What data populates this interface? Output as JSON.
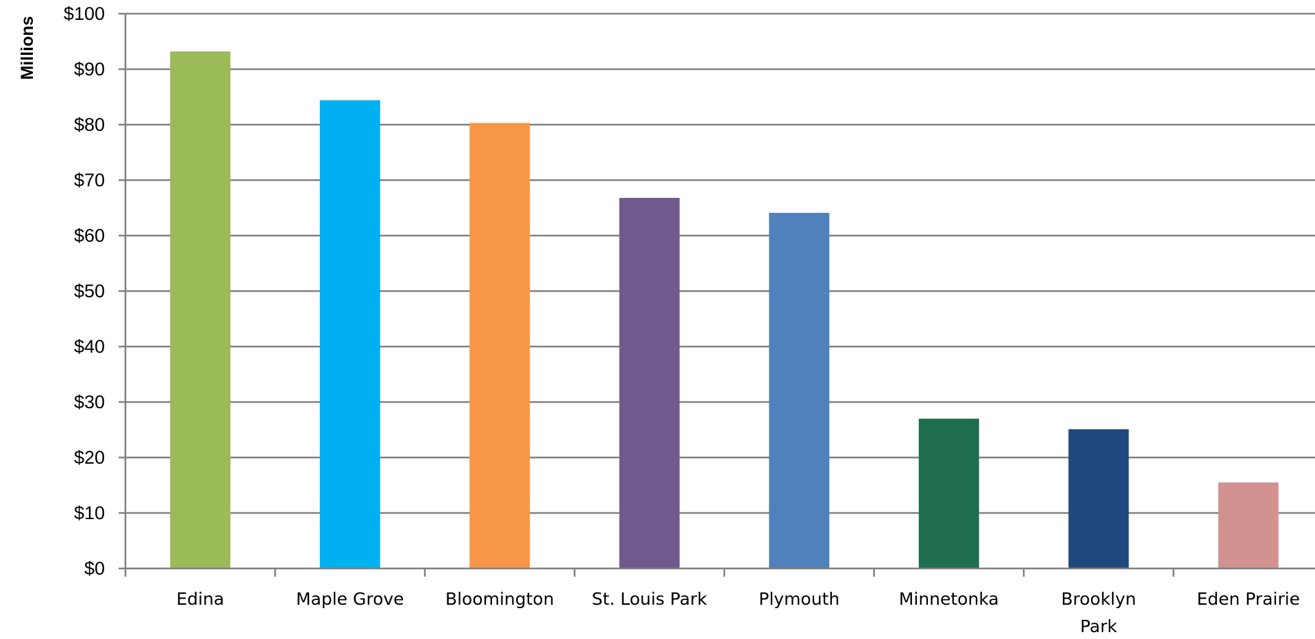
{
  "chart_data": {
    "type": "bar",
    "ylabel": "Millions",
    "ylim": [
      0,
      100
    ],
    "y_tick_values": [
      0,
      10,
      20,
      30,
      40,
      50,
      60,
      70,
      80,
      90,
      100
    ],
    "y_tick_labels": [
      "$0",
      "$10",
      "$20",
      "$30",
      "$40",
      "$50",
      "$60",
      "$70",
      "$80",
      "$90",
      "$100"
    ],
    "grid": true,
    "categories": [
      [
        "Edina"
      ],
      [
        "Maple Grove"
      ],
      [
        "Bloomington"
      ],
      [
        "St. Louis Park"
      ],
      [
        "Plymouth"
      ],
      [
        "Minnetonka"
      ],
      [
        "Brooklyn",
        "Park"
      ],
      [
        "Eden Prairie"
      ]
    ],
    "values": [
      93.2,
      84.4,
      80.3,
      66.8,
      64.1,
      27.0,
      25.1,
      15.5
    ],
    "colors": [
      "#9BBB59",
      "#00B0F0",
      "#F79646",
      "#705A8D",
      "#4F81BD",
      "#1E6E4F",
      "#1F497D",
      "#D29290"
    ],
    "gridline_color": "#808080",
    "axis_color": "#808080"
  }
}
